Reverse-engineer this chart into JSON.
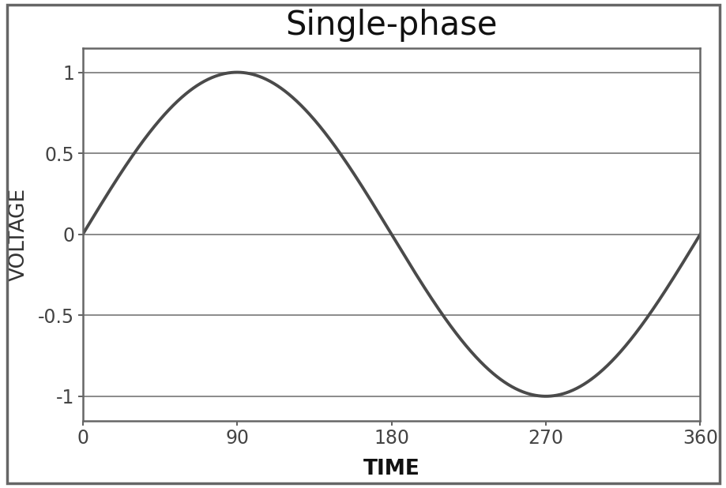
{
  "title": "Single-phase",
  "xlabel": "TIME",
  "ylabel": "VOLTAGE",
  "xlim": [
    0,
    360
  ],
  "ylim": [
    -1.15,
    1.15
  ],
  "xticks": [
    0,
    90,
    180,
    270,
    360
  ],
  "yticks": [
    -1,
    -0.5,
    0,
    0.5,
    1
  ],
  "ytick_labels": [
    "-1",
    "-0.5",
    "0",
    "0.5",
    "1"
  ],
  "line_color": "#4a4a4a",
  "line_width": 2.8,
  "grid_color": "#777777",
  "grid_linewidth": 1.2,
  "background_color": "#ffffff",
  "spine_color": "#666666",
  "spine_linewidth": 1.8,
  "outer_border_color": "#666666",
  "outer_border_linewidth": 2.5,
  "title_fontsize": 30,
  "label_fontsize": 19,
  "tick_fontsize": 17
}
